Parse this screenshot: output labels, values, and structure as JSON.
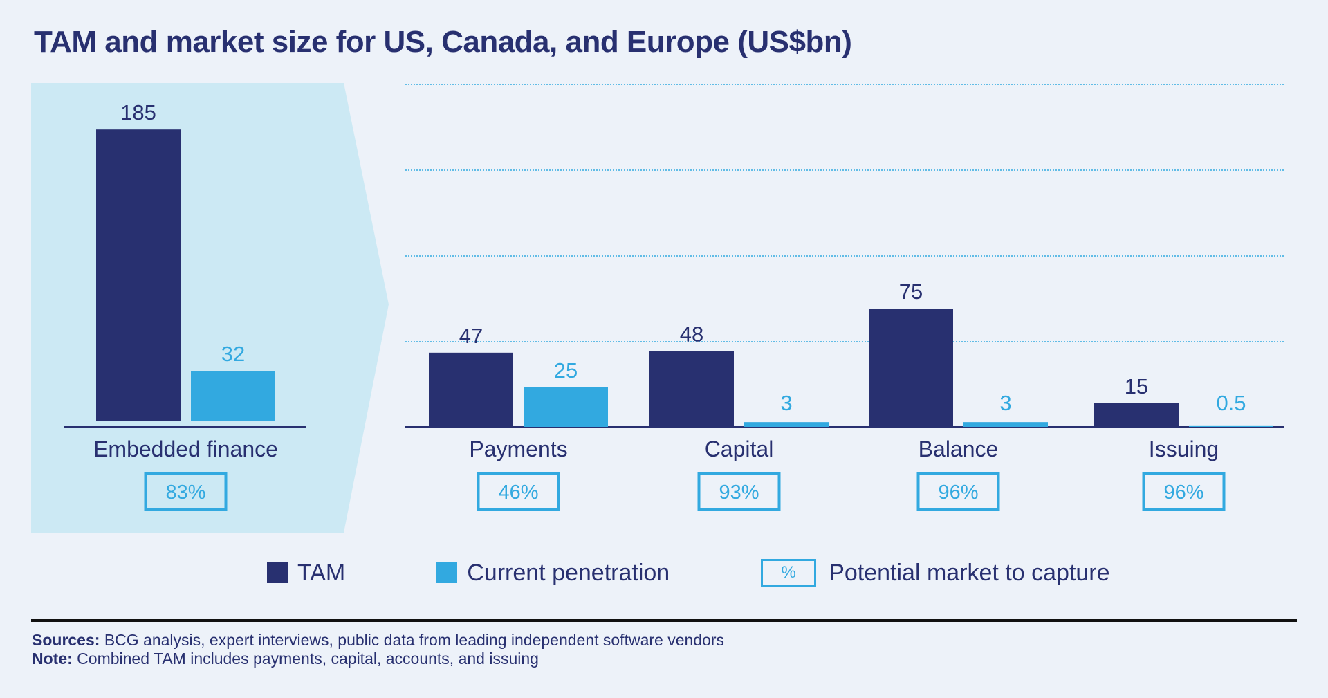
{
  "chart_data": {
    "type": "bar",
    "title": "TAM and market size for US, Canada, and Europe (US$bn)",
    "categories": [
      "Embedded finance",
      "Payments",
      "Capital",
      "Balance",
      "Issuing"
    ],
    "series": [
      {
        "name": "TAM",
        "values": [
          185,
          47,
          48,
          75,
          15
        ],
        "color": "#283070"
      },
      {
        "name": "Current penetration",
        "values": [
          32,
          25,
          3,
          3,
          0.5
        ],
        "color": "#32a9e0"
      }
    ],
    "potential_market_to_capture": [
      "83%",
      "46%",
      "93%",
      "96%",
      "96%"
    ],
    "highlighted_category": "Embedded finance",
    "grid": true,
    "legend_position": "bottom",
    "legend": {
      "tam": "TAM",
      "penetration": "Current penetration",
      "potential_symbol": "%",
      "potential": "Potential market to capture"
    }
  },
  "footer": {
    "sources_label": "Sources:",
    "sources": "BCG analysis, expert interviews, public data from leading independent software vendors",
    "note_label": "Note:",
    "note": "Combined TAM includes payments, capital, accounts, and issuing"
  },
  "colors": {
    "tam": "#283070",
    "penetration": "#32a9e0",
    "panel": "#cce9f4",
    "background": "#edf2f9"
  }
}
